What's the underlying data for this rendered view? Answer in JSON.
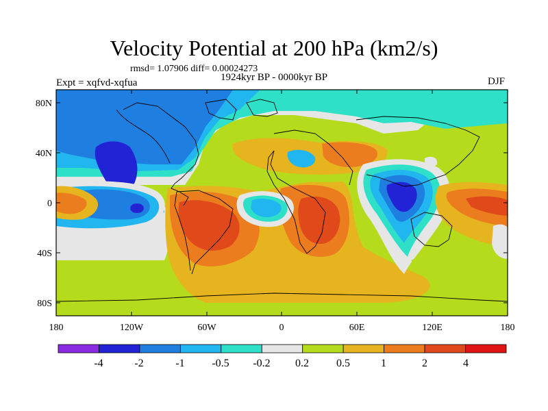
{
  "title": "Velocity Potential at 200 hPa (km2/s)",
  "rmsd_line": "rmsd= 1.07906 diff= 0.00024273",
  "subtitle": "1924kyr BP - 0000kyr BP",
  "expt": "Expt = xqfvd-xqfua",
  "season": "DJF",
  "map": {
    "lat_ticks": [
      "80N",
      "40N",
      "0",
      "40S",
      "80S"
    ],
    "lon_ticks": [
      "180",
      "120W",
      "60W",
      "0",
      "60E",
      "120E",
      "180"
    ]
  },
  "colorbar": {
    "labels": [
      "-4",
      "-2",
      "-1",
      "-0.5",
      "-0.2",
      "0.2",
      "0.5",
      "1",
      "2",
      "4"
    ],
    "colors": [
      "#8a2be2",
      "#2323d6",
      "#1e7fe0",
      "#22b6f0",
      "#2ee0c8",
      "#e6e6e6",
      "#b4dc1c",
      "#e6b41e",
      "#eb7d1e",
      "#e04a1a",
      "#e01414"
    ]
  },
  "palette": {
    "c_m4": "#2323d6",
    "c_m2": "#1e7fe0",
    "c_m1": "#22b6f0",
    "c_m05": "#2ee0c8",
    "c_0": "#e6e6e6",
    "c_p02": "#b4dc1c",
    "c_p05": "#e6b41e",
    "c_p1": "#eb7d1e",
    "c_p2": "#e04a1a"
  }
}
